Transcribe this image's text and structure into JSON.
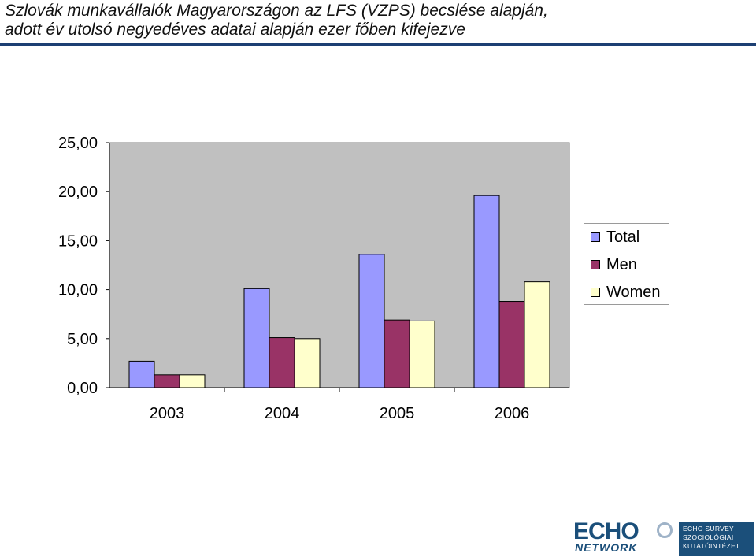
{
  "title": {
    "line1": "Szlovák munkavállalók Magyarországon az LFS (VZPS) becslése alapján,",
    "line2": "adott év utolsó negyedéves adatai alapján ezer főben kifejezve"
  },
  "chart_data": {
    "type": "bar",
    "categories": [
      "2003",
      "2004",
      "2005",
      "2006"
    ],
    "series": [
      {
        "name": "Total",
        "values": [
          2.7,
          10.1,
          13.6,
          19.6
        ],
        "color": "#9999ff"
      },
      {
        "name": "Men",
        "values": [
          1.3,
          5.1,
          6.9,
          8.8
        ],
        "color": "#993366"
      },
      {
        "name": "Women",
        "values": [
          1.3,
          5.0,
          6.8,
          10.8
        ],
        "color": "#ffffcc"
      }
    ],
    "ylim": [
      0,
      25
    ],
    "yticks": [
      "0,00",
      "5,00",
      "10,00",
      "15,00",
      "20,00",
      "25,00"
    ],
    "plot_background": "#c0c0c0",
    "grid": false,
    "legend_position": "right"
  },
  "logo": {
    "echo": "ECHO",
    "network": "NETWORK",
    "line1": "ECHO SURVEY",
    "line2": "SZOCIOLÓGIAI",
    "line3": "KUTATÓINTÉZET"
  }
}
